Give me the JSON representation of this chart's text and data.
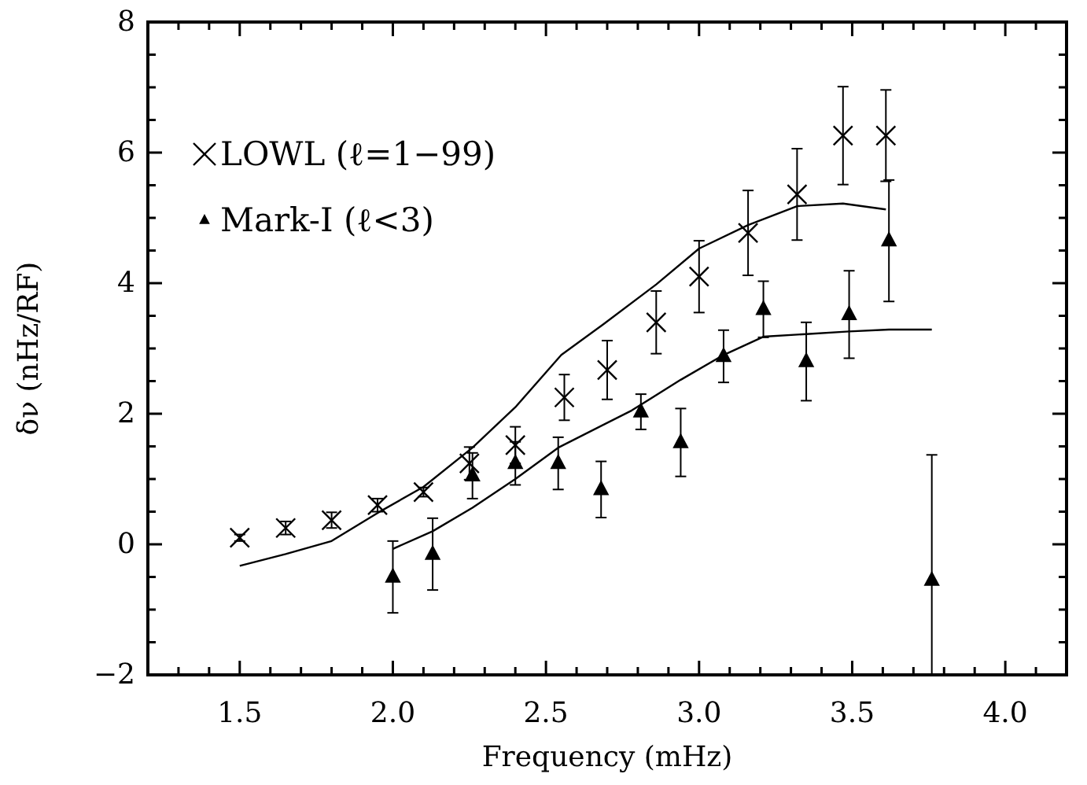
{
  "chart_data": {
    "type": "scatter",
    "xlabel": "Frequency (mHz)",
    "ylabel": "δν (nHz/RF)",
    "xlim": [
      1.2,
      4.2
    ],
    "ylim": [
      -2,
      8
    ],
    "xticks": [
      {
        "value": 1.2,
        "label": null
      },
      {
        "value": 1.3,
        "label": null
      },
      {
        "value": 1.4,
        "label": null
      },
      {
        "value": 1.5,
        "label": "1.5"
      },
      {
        "value": 1.6,
        "label": null
      },
      {
        "value": 1.7,
        "label": null
      },
      {
        "value": 1.8,
        "label": null
      },
      {
        "value": 1.9,
        "label": null
      },
      {
        "value": 2.0,
        "label": "2.0"
      },
      {
        "value": 2.1,
        "label": null
      },
      {
        "value": 2.2,
        "label": null
      },
      {
        "value": 2.3,
        "label": null
      },
      {
        "value": 2.4,
        "label": null
      },
      {
        "value": 2.5,
        "label": "2.5"
      },
      {
        "value": 2.6,
        "label": null
      },
      {
        "value": 2.7,
        "label": null
      },
      {
        "value": 2.8,
        "label": null
      },
      {
        "value": 2.9,
        "label": null
      },
      {
        "value": 3.0,
        "label": "3.0"
      },
      {
        "value": 3.1,
        "label": null
      },
      {
        "value": 3.2,
        "label": null
      },
      {
        "value": 3.3,
        "label": null
      },
      {
        "value": 3.4,
        "label": null
      },
      {
        "value": 3.5,
        "label": "3.5"
      },
      {
        "value": 3.6,
        "label": null
      },
      {
        "value": 3.7,
        "label": null
      },
      {
        "value": 3.8,
        "label": null
      },
      {
        "value": 3.9,
        "label": null
      },
      {
        "value": 4.0,
        "label": "4.0"
      },
      {
        "value": 4.1,
        "label": null
      },
      {
        "value": 4.2,
        "label": null
      }
    ],
    "yticks": [
      -2,
      {
        "value": -1.5,
        "label": null
      },
      {
        "value": -1,
        "label": null
      },
      {
        "value": -0.5,
        "label": null
      },
      0,
      {
        "value": 0.5,
        "label": null
      },
      {
        "value": 1,
        "label": null
      },
      {
        "value": 1.5,
        "label": null
      },
      2,
      {
        "value": 2.5,
        "label": null
      },
      {
        "value": 3,
        "label": null
      },
      {
        "value": 3.5,
        "label": null
      },
      4,
      {
        "value": 4.5,
        "label": null
      },
      {
        "value": 5,
        "label": null
      },
      {
        "value": 5.5,
        "label": null
      },
      6,
      {
        "value": 6.5,
        "label": null
      },
      {
        "value": 7,
        "label": null
      },
      {
        "value": 7.5,
        "label": null
      },
      8
    ],
    "grid": false,
    "legend": "top left",
    "series": [
      {
        "name": "LOWL (ℓ=1−99)",
        "color": "#000000",
        "marker": "cross",
        "x": [
          1.5,
          1.65,
          1.8,
          1.95,
          2.1,
          2.25,
          2.4,
          2.56,
          2.7,
          2.86,
          3.0,
          3.16,
          3.32,
          3.47,
          3.61
        ],
        "values": [
          0.1,
          0.25,
          0.37,
          0.6,
          0.8,
          1.24,
          1.52,
          2.25,
          2.67,
          3.4,
          4.1,
          4.77,
          5.36,
          6.26,
          6.26
        ],
        "errors": [
          0.05,
          0.1,
          0.12,
          0.1,
          0.07,
          0.25,
          0.28,
          0.35,
          0.45,
          0.48,
          0.55,
          0.65,
          0.7,
          0.75,
          0.7
        ]
      },
      {
        "name": "Mark-I (ℓ<3)",
        "color": "#000000",
        "marker": "triangle",
        "x": [
          2.0,
          2.13,
          2.26,
          2.4,
          2.54,
          2.68,
          2.81,
          2.94,
          3.08,
          3.21,
          3.35,
          3.49,
          3.62,
          3.76
        ],
        "values": [
          -0.5,
          -0.15,
          1.05,
          1.24,
          1.24,
          0.84,
          2.03,
          1.56,
          2.88,
          3.6,
          2.8,
          3.52,
          4.65,
          -0.55
        ],
        "errors": [
          0.55,
          0.55,
          0.35,
          0.33,
          0.4,
          0.43,
          0.27,
          0.52,
          0.4,
          0.43,
          0.6,
          0.67,
          0.93,
          [
            -2,
            1.37
          ]
        ]
      },
      {
        "type": "line",
        "color": "#000000",
        "x": [
          1.5,
          1.65,
          1.8,
          1.95,
          2.1,
          2.26,
          2.4,
          2.55,
          2.69,
          2.86,
          3.0,
          3.16,
          3.32,
          3.47,
          3.61
        ],
        "values": [
          -0.33,
          -0.15,
          0.05,
          0.48,
          0.88,
          1.48,
          2.1,
          2.9,
          3.38,
          3.98,
          4.53,
          4.89,
          5.18,
          5.22,
          5.13
        ]
      },
      {
        "type": "line",
        "color": "#000000",
        "x": [
          2.0,
          2.13,
          2.26,
          2.4,
          2.54,
          2.78,
          2.94,
          3.08,
          3.21,
          3.35,
          3.49,
          3.62,
          3.76
        ],
        "values": [
          -0.07,
          0.2,
          0.56,
          1.0,
          1.48,
          2.05,
          2.52,
          2.9,
          3.18,
          3.22,
          3.26,
          3.29,
          3.29
        ]
      }
    ]
  }
}
